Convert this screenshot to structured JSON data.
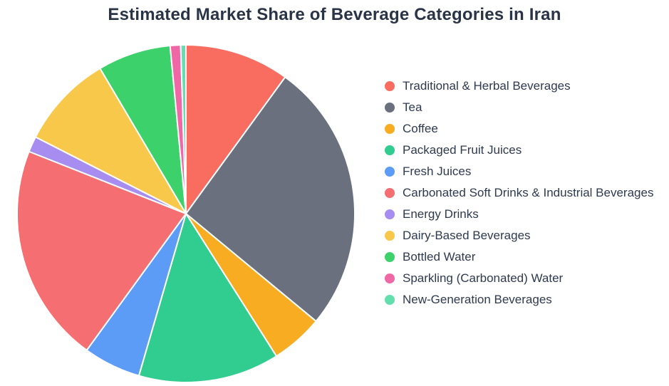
{
  "title": "Estimated Market Share of Beverage Categories in Iran",
  "background_color": "#ffffff",
  "title_color": "#2a3447",
  "legend_text_color": "#2e3a4e",
  "chart_data": {
    "type": "pie",
    "title": "Estimated Market Share of Beverage Categories in Iran",
    "unit": "percent",
    "start_angle_deg": 0,
    "direction": "clockwise",
    "legend_position": "right",
    "slice_separator_color": "#ffffff",
    "categories": [
      "Traditional & Herbal Beverages",
      "Tea",
      "Coffee",
      "Packaged Fruit Juices",
      "Fresh Juices",
      "Carbonated Soft Drinks & Industrial Beverages",
      "Energy Drinks",
      "Dairy-Based Beverages",
      "Bottled Water",
      "Sparkling (Carbonated) Water",
      "New-Generation Beverages"
    ],
    "values": [
      10,
      26,
      5,
      13.5,
      5.5,
      21,
      1.5,
      9,
      7,
      1,
      0.5
    ],
    "colors": [
      "#f96d61",
      "#6a707e",
      "#f7ac21",
      "#31cc90",
      "#5c9bf6",
      "#f56e71",
      "#a78df0",
      "#f8c84a",
      "#3dd16c",
      "#f067a6",
      "#63dfad"
    ]
  }
}
